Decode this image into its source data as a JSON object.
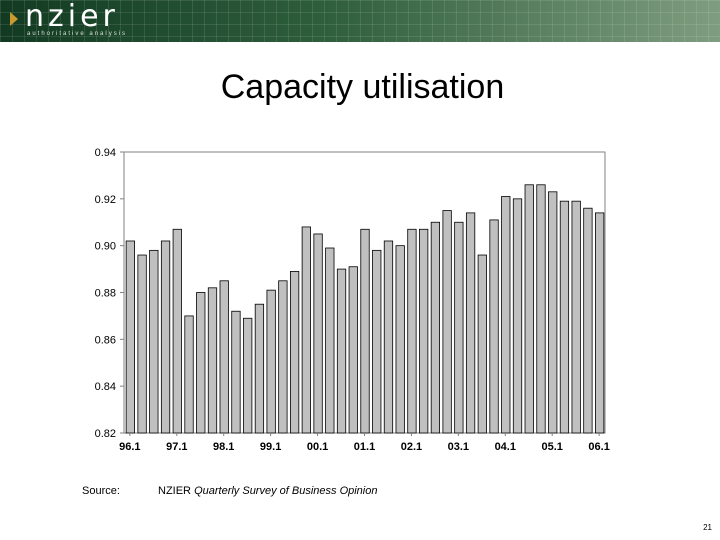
{
  "header": {
    "logo_text": "nzier",
    "tagline": "authoritative analysis",
    "colors": {
      "banner_dark": "#123a22",
      "banner_light": "#7f9d80",
      "mark": "#c99a2e"
    }
  },
  "slide": {
    "title": "Capacity utilisation",
    "source_label": "Source:",
    "source_org": "NZIER",
    "source_title": "Quarterly Survey of Business Opinion",
    "page_number": "21"
  },
  "chart_data": {
    "type": "bar",
    "title": "",
    "xlabel": "",
    "ylabel": "",
    "ylim": [
      0.82,
      0.94
    ],
    "yticks": [
      "0.82",
      "0.84",
      "0.86",
      "0.88",
      "0.90",
      "0.92",
      "0.94"
    ],
    "x_tick_labels": [
      {
        "label": "96.1",
        "index": 0
      },
      {
        "label": "97.1",
        "index": 4
      },
      {
        "label": "98.1",
        "index": 8
      },
      {
        "label": "99.1",
        "index": 12
      },
      {
        "label": "00.1",
        "index": 16
      },
      {
        "label": "01.1",
        "index": 20
      },
      {
        "label": "02.1",
        "index": 24
      },
      {
        "label": "03.1",
        "index": 28
      },
      {
        "label": "04.1",
        "index": 32
      },
      {
        "label": "05.1",
        "index": 36
      },
      {
        "label": "06.1",
        "index": 40
      }
    ],
    "grid": false,
    "bar_color": "#c0c0c0",
    "categories": [
      "96.1",
      "96.2",
      "96.3",
      "96.4",
      "97.1",
      "97.2",
      "97.3",
      "97.4",
      "98.1",
      "98.2",
      "98.3",
      "98.4",
      "99.1",
      "99.2",
      "99.3",
      "99.4",
      "00.1",
      "00.2",
      "00.3",
      "00.4",
      "01.1",
      "01.2",
      "01.3",
      "01.4",
      "02.1",
      "02.2",
      "02.3",
      "02.4",
      "03.1",
      "03.2",
      "03.3",
      "03.4",
      "04.1",
      "04.2",
      "04.3",
      "04.4",
      "05.1",
      "05.2",
      "05.3",
      "05.4",
      "06.1"
    ],
    "values": [
      0.902,
      0.896,
      0.898,
      0.902,
      0.907,
      0.87,
      0.88,
      0.882,
      0.885,
      0.872,
      0.869,
      0.875,
      0.881,
      0.885,
      0.889,
      0.908,
      0.905,
      0.899,
      0.89,
      0.891,
      0.907,
      0.898,
      0.902,
      0.9,
      0.907,
      0.907,
      0.91,
      0.915,
      0.91,
      0.914,
      0.896,
      0.911,
      0.921,
      0.92,
      0.926,
      0.926,
      0.923,
      0.919,
      0.919,
      0.916,
      0.914
    ]
  }
}
